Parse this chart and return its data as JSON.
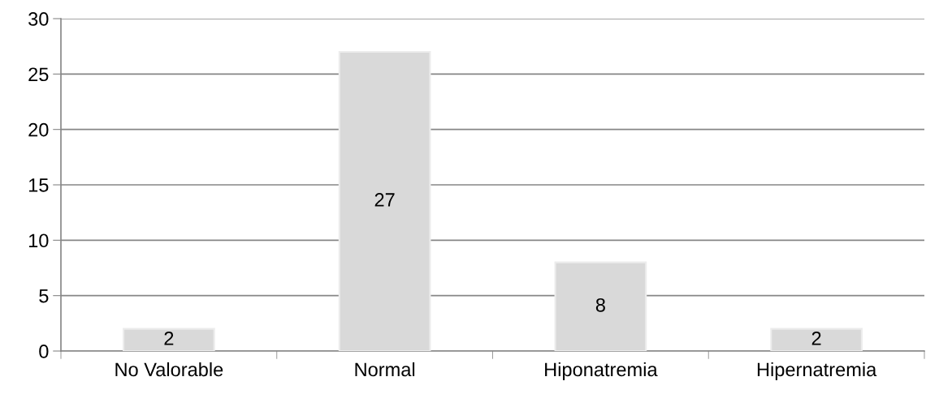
{
  "chart_data": {
    "type": "bar",
    "categories": [
      "No Valorable",
      "Normal",
      "Hiponatremia",
      "Hipernatremia"
    ],
    "values": [
      2,
      27,
      8,
      2
    ],
    "color": "#d9d9d9",
    "ylim": [
      0,
      30
    ],
    "yticks": [
      0,
      5,
      10,
      15,
      20,
      25,
      30
    ],
    "grid": "y",
    "data_labels": true
  }
}
